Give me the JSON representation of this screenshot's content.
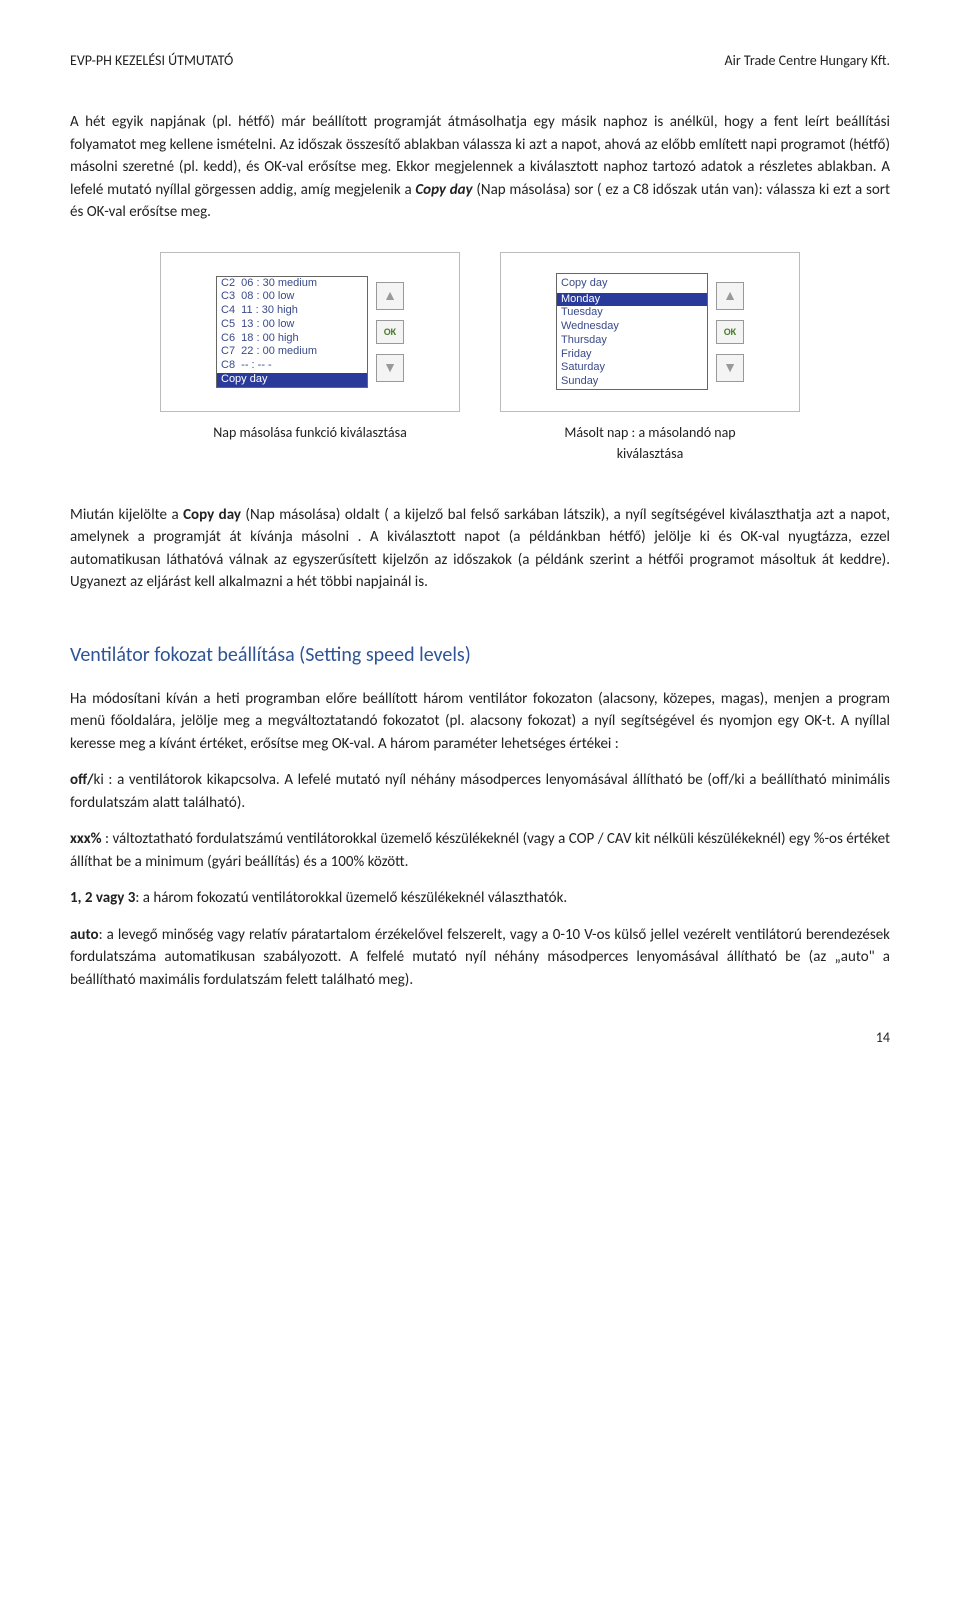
{
  "header": {
    "left": "EVP-PH KEZELÉSI ÚTMUTATÓ",
    "right": "Air Trade Centre Hungary Kft."
  },
  "para1_a": "A hét egyik napjának (pl. hétfő) már beállított programját átmásolhatja egy másik naphoz is anélkül, hogy a fent leírt beállítási folyamatot meg kellene ismételni. Az időszak összesítő ablakban válassza ki azt a napot, ahová az előbb említett napi programot (hétfő) másolni szeretné (pl. kedd), és OK-val erősítse meg. Ekkor megjelennek a kiválasztott naphoz tartozó adatok a részletes ablakban. A lefelé mutató nyíllal görgessen addig, amíg megjelenik a ",
  "para1_copy": "Copy day",
  "para1_b": " (Nap másolása) sor ( ez a C8 időszak után van): válassza ki ezt a sort és OK-val erősítse meg.",
  "panel1": {
    "rows": [
      {
        "c": "C2",
        "t": "06 : 30",
        "m": "medium",
        "sel": false
      },
      {
        "c": "C3",
        "t": "08 : 00",
        "m": "low",
        "sel": false
      },
      {
        "c": "C4",
        "t": "11 : 30",
        "m": "high",
        "sel": false
      },
      {
        "c": "C5",
        "t": "13 : 00",
        "m": "low",
        "sel": false
      },
      {
        "c": "C6",
        "t": "18 : 00",
        "m": "high",
        "sel": false
      },
      {
        "c": "C7",
        "t": "22 : 00",
        "m": "medium",
        "sel": false
      },
      {
        "c": "C8",
        "t": "-- : --",
        "m": "-",
        "sel": false
      }
    ],
    "copy_row": "Copy day",
    "up": "▲",
    "down": "▼",
    "ok": "OK"
  },
  "panel2": {
    "header": "Copy  day",
    "days": [
      "Monday",
      "Tuesday",
      "Wednesday",
      "Thursday",
      "Friday",
      "Saturday",
      "Sunday"
    ],
    "selected_index": 0,
    "up": "▲",
    "down": "▼",
    "ok": "OK"
  },
  "caption1": "Nap másolása funkció kiválasztása",
  "caption2_a": "Másolt nap : a másolandó nap",
  "caption2_b": "kiválasztása",
  "para2_a": "Miután kijelölte a ",
  "para2_copy": "Copy day",
  "para2_b": " (Nap másolása) oldalt ( a kijelző bal felső sarkában látszik), a nyíl segítségével kiválaszthatja azt a napot, amelynek a programját át kívánja másolni . A kiválasztott napot (a példánkban hétfő) jelölje ki és OK-val nyugtázza, ezzel automatikusan láthatóvá válnak az egyszerűsített kijelzőn az időszakok (a példánk szerint a hétfői programot másoltuk át keddre). Ugyanezt az eljárást kell alkalmazni a hét többi napjainál is.",
  "section_title": "Ventilátor fokozat beállítása (Setting speed levels)",
  "para3": "Ha módosítani kíván a heti programban előre beállított három ventilátor fokozaton (alacsony, közepes, magas), menjen a program menü főoldalára, jelölje meg a megváltoztatandó fokozatot (pl. alacsony fokozat) a nyíl segítségével és nyomjon egy OK-t. A nyíllal keresse meg a kívánt értéket, erősítse meg OK-val. A három paraméter lehetséges értékei :",
  "opt_off_label": "off/",
  "opt_off_a": "ki : a ventilátorok kikapcsolva. A lefelé mutató nyíl néhány másodperces lenyomásával állítható be (off/ki a beállítható minimális fordulatszám alatt található).",
  "opt_xxx_label": "xxx%",
  "opt_xxx_a": " : változtatható fordulatszámú ventilátorokkal üzemelő készülékeknél (vagy a COP / CAV kit nélküli készülékeknél) egy %-os értéket állíthat be a minimum (gyári beállítás) és a 100% között.",
  "opt_123_label": "1, 2 vagy 3",
  "opt_123_a": ": a három fokozatú ventilátorokkal üzemelő készülékeknél választhatók.",
  "opt_auto_label": "auto",
  "opt_auto_a": ": a levegő minőség vagy relatív páratartalom érzékelővel felszerelt, vagy a 0-10 V-os külső jellel vezérelt ventilátorú berendezések fordulatszáma automatikusan szabályozott. A felfelé mutató nyíl néhány másodperces lenyomásával állítható be (az „auto\" a beállítható maximális fordulatszám felett található meg).",
  "page_number": "14"
}
